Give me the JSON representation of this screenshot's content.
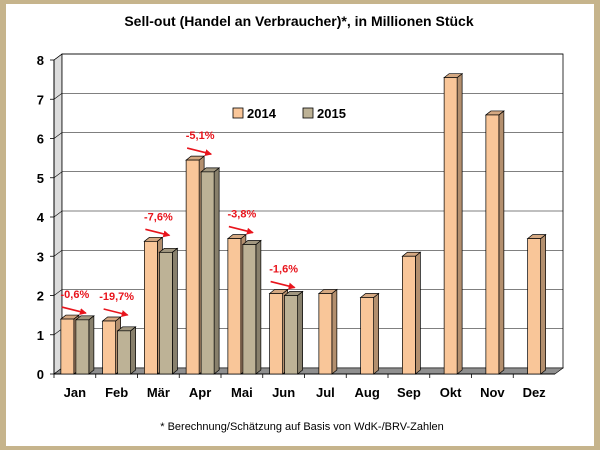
{
  "chart_data": {
    "type": "bar",
    "title": "Sell-out (Handel an Verbraucher)*, in Millionen Stück",
    "footnote": "* Berechnung/Schätzung auf Basis von WdK-/BRV-Zahlen",
    "categories": [
      "Jan",
      "Feb",
      "Mär",
      "Apr",
      "Mai",
      "Jun",
      "Jul",
      "Aug",
      "Sep",
      "Okt",
      "Nov",
      "Dez"
    ],
    "series": [
      {
        "name": "2014",
        "color": "#f9c699",
        "values": [
          1.4,
          1.35,
          3.38,
          5.45,
          3.45,
          2.05,
          2.05,
          1.95,
          3.0,
          7.55,
          6.6,
          3.45
        ]
      },
      {
        "name": "2015",
        "color": "#bdb296",
        "values": [
          1.38,
          1.1,
          3.1,
          5.15,
          3.3,
          2.0,
          null,
          null,
          null,
          null,
          null,
          null
        ]
      }
    ],
    "annotations": [
      {
        "category": "Jan",
        "text": "-0,6%"
      },
      {
        "category": "Feb",
        "text": "-19,7%"
      },
      {
        "category": "Mär",
        "text": "-7,6%"
      },
      {
        "category": "Apr",
        "text": "-5,1%"
      },
      {
        "category": "Mai",
        "text": "-3,8%"
      },
      {
        "category": "Jun",
        "text": "-1,6%"
      }
    ],
    "annotation_color": "#e8141c",
    "ylim": [
      0,
      8
    ],
    "yticks": [
      0,
      1,
      2,
      3,
      4,
      5,
      6,
      7,
      8
    ],
    "grid": true,
    "legend": "top-left"
  }
}
